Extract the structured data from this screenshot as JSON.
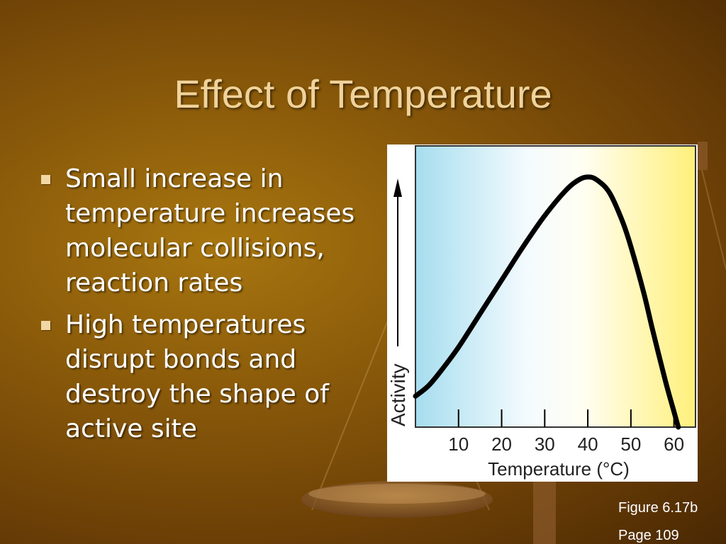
{
  "slide": {
    "title": "Effect of Temperature",
    "bullets": [
      "Small increase in temperature increases molecular collisions, reaction rates",
      "High temperatures disrupt bonds and destroy the shape of active site"
    ],
    "figure_label": "Figure 6.17b",
    "page_label": "Page 109"
  },
  "colors": {
    "title": "#f0d39a",
    "curve": "#000000",
    "cold_gradient": "#a6ddef",
    "warm_gradient": "#fff07a"
  },
  "chart_data": {
    "type": "line",
    "title": "",
    "xlabel": "Temperature (°C)",
    "ylabel": "Activity",
    "xticks": [
      "10",
      "20",
      "30",
      "40",
      "50",
      "60"
    ],
    "xlim": [
      0,
      65
    ],
    "ylim": [
      0,
      1
    ],
    "y_tick_labels": false,
    "grid": false,
    "series": [
      {
        "x": [
          0,
          3,
          6,
          10,
          15,
          20,
          25,
          30,
          35,
          38,
          40,
          42,
          45,
          48,
          50,
          53,
          55,
          58,
          60,
          61
        ],
        "y": [
          0.12,
          0.16,
          0.22,
          0.31,
          0.44,
          0.57,
          0.7,
          0.82,
          0.92,
          0.96,
          0.97,
          0.96,
          0.91,
          0.8,
          0.7,
          0.52,
          0.38,
          0.18,
          0.06,
          0.0
        ]
      }
    ]
  }
}
